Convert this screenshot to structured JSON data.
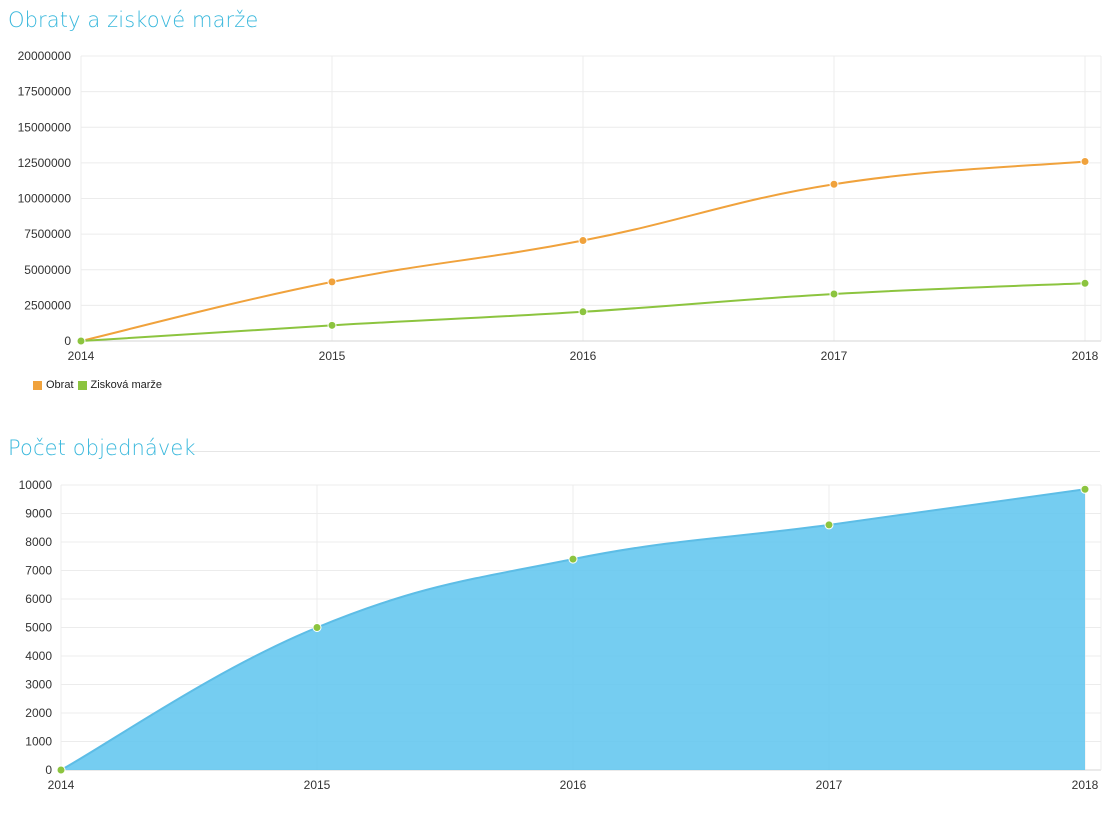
{
  "chart_data": [
    {
      "type": "line",
      "title": "Obraty a ziskové marže",
      "categories": [
        "2014",
        "2015",
        "2016",
        "2017",
        "2018"
      ],
      "ylim": [
        0,
        20000000
      ],
      "yticks": [
        "20000000",
        "17500000",
        "15000000",
        "12500000",
        "10000000",
        "7500000",
        "5000000",
        "2500000",
        "0"
      ],
      "grid": true,
      "legend_position": "bottom-left",
      "series": [
        {
          "name": "Obrat",
          "color": "#f0a23c",
          "values": [
            0,
            4150000,
            7050000,
            11000000,
            12600000
          ]
        },
        {
          "name": "Zisková marže",
          "color": "#8cc43f",
          "values": [
            0,
            1100000,
            2050000,
            3300000,
            4050000
          ]
        }
      ]
    },
    {
      "type": "area",
      "title": "Počet objednávek",
      "categories": [
        "2014",
        "2015",
        "2016",
        "2017",
        "2018"
      ],
      "ylim": [
        0,
        10000
      ],
      "yticks": [
        "10000",
        "9000",
        "8000",
        "7000",
        "6000",
        "5000",
        "4000",
        "3000",
        "2000",
        "1000",
        "0"
      ],
      "grid": true,
      "series": [
        {
          "color": "#66c8f0",
          "point_color": "#8cc43f",
          "values": [
            0,
            5000,
            7400,
            8600,
            9850
          ]
        }
      ]
    }
  ]
}
